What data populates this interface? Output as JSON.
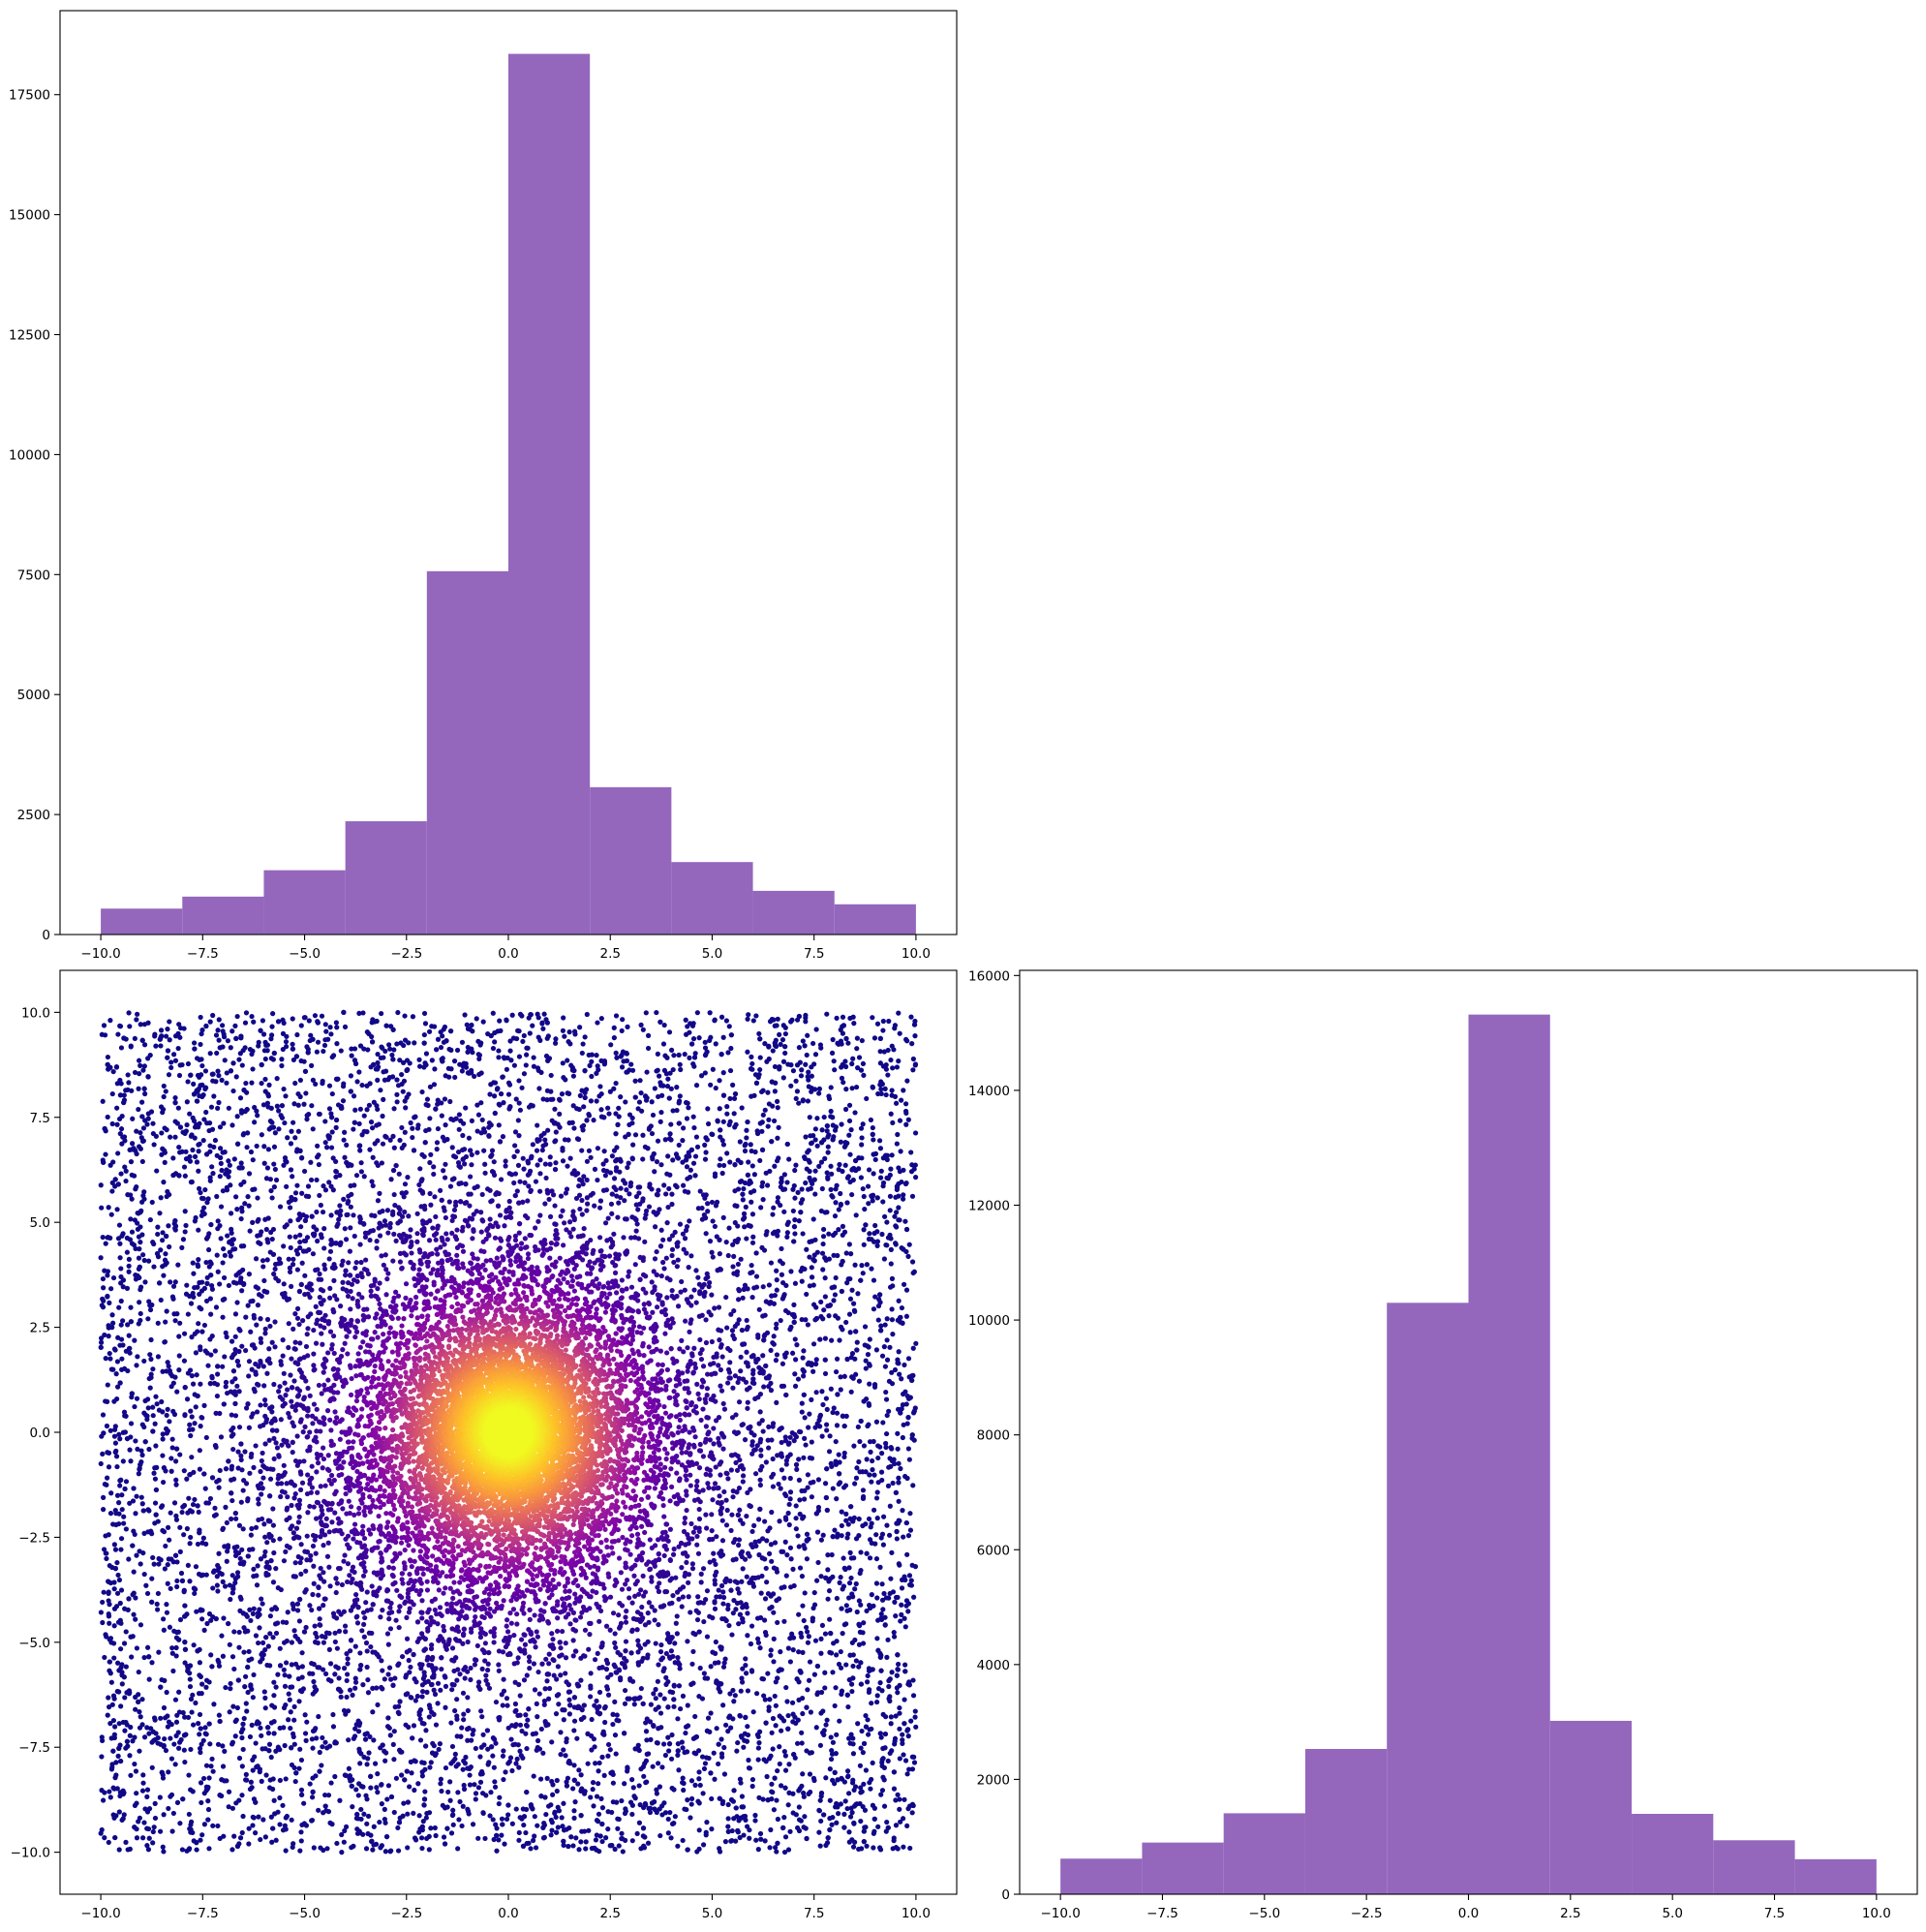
{
  "figure": {
    "background": "#ffffff",
    "bar_color": "#9467bd",
    "scatter_colormap": "plasma"
  },
  "chart_data": [
    {
      "id": "hist_x",
      "type": "bar",
      "title": "",
      "xlabel": "",
      "ylabel": "",
      "bin_edges": [
        -10,
        -8,
        -6,
        -4,
        -2,
        0,
        2,
        4,
        6,
        8,
        10
      ],
      "values": [
        540,
        790,
        1340,
        2360,
        7570,
        18350,
        3070,
        1510,
        910,
        630
      ],
      "xlim": [
        -11,
        11
      ],
      "ylim": [
        0,
        19250
      ],
      "xticks": [
        -10.0,
        -7.5,
        -5.0,
        -2.5,
        0.0,
        2.5,
        5.0,
        7.5,
        10.0
      ],
      "xtick_labels": [
        "−10.0",
        "−7.5",
        "−5.0",
        "−2.5",
        "0.0",
        "2.5",
        "5.0",
        "7.5",
        "10.0"
      ],
      "yticks": [
        0,
        2500,
        5000,
        7500,
        10000,
        12500,
        15000,
        17500
      ],
      "ytick_labels": [
        "0",
        "2500",
        "5000",
        "7500",
        "10000",
        "12500",
        "15000",
        "17500"
      ],
      "color": "#9467bd",
      "grid": false
    },
    {
      "id": "scatter_xy",
      "type": "scatter",
      "title": "",
      "xlabel": "",
      "ylabel": "",
      "description_of_points": "about 10000 points uniform in [-10,10]x[-10,10] plus a dense gaussian cluster at (0,0); color encodes local density with the plasma colormap",
      "n_uniform_points": 9000,
      "cluster_center": [
        0,
        0
      ],
      "xlim": [
        -11,
        11
      ],
      "ylim": [
        -11,
        11
      ],
      "xticks": [
        -10.0,
        -7.5,
        -5.0,
        -2.5,
        0.0,
        2.5,
        5.0,
        7.5,
        10.0
      ],
      "xtick_labels": [
        "−10.0",
        "−7.5",
        "−5.0",
        "−2.5",
        "0.0",
        "2.5",
        "5.0",
        "7.5",
        "10.0"
      ],
      "yticks": [
        -10.0,
        -7.5,
        -5.0,
        -2.5,
        0.0,
        2.5,
        5.0,
        7.5,
        10.0
      ],
      "ytick_labels": [
        "−10.0",
        "−7.5",
        "−5.0",
        "−2.5",
        "0.0",
        "2.5",
        "5.0",
        "7.5",
        "10.0"
      ],
      "color_low": "#2c0594",
      "color_high": "#f0f921",
      "grid": false
    },
    {
      "id": "hist_y",
      "type": "bar",
      "title": "",
      "xlabel": "",
      "ylabel": "",
      "bin_edges": [
        -10,
        -8,
        -6,
        -4,
        -2,
        0,
        2,
        4,
        6,
        8,
        10
      ],
      "values": [
        620,
        900,
        1410,
        2530,
        10300,
        15320,
        3020,
        1400,
        940,
        610
      ],
      "xlim": [
        -11,
        11
      ],
      "ylim": [
        0,
        16090
      ],
      "xticks": [
        -10.0,
        -7.5,
        -5.0,
        -2.5,
        0.0,
        2.5,
        5.0,
        7.5,
        10.0
      ],
      "xtick_labels": [
        "−10.0",
        "−7.5",
        "−5.0",
        "−2.5",
        "0.0",
        "2.5",
        "5.0",
        "7.5",
        "10.0"
      ],
      "yticks": [
        0,
        2000,
        4000,
        6000,
        8000,
        10000,
        12000,
        14000,
        16000
      ],
      "ytick_labels": [
        "0",
        "2000",
        "4000",
        "6000",
        "8000",
        "10000",
        "12000",
        "14000",
        "16000"
      ],
      "color": "#9467bd",
      "grid": false
    }
  ]
}
